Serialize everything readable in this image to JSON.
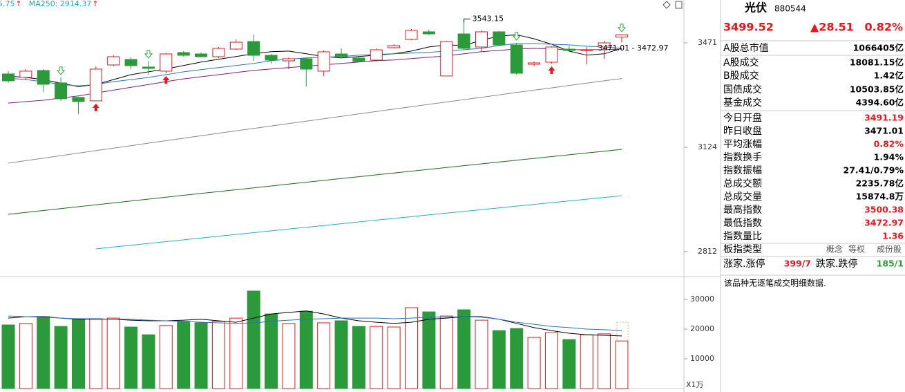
{
  "chart_data": [
    {
      "type": "candlestick",
      "log_scale": true,
      "legend": [
        {
          "label": "5.75",
          "arrow": "↑"
        },
        {
          "label": "MA250: 2914.37",
          "arrow": "↑"
        }
      ],
      "open": [
        3363.9,
        3352.2,
        3375.6,
        3333.6,
        3285.1,
        3273.7,
        3394.5,
        3413.4,
        3387.4,
        3373.3,
        3437.3,
        3432.5,
        3422.9,
        3449.3,
        3475.8,
        3427.7,
        3408.7,
        3415.8,
        3373.3,
        3432.5,
        3418.2,
        3411.0,
        3454.1,
        3483.1,
        3510.0,
        3356.9,
        3502.6,
        3456.5,
        3510.0,
        3463.7,
        3396.8,
        3403.9,
        3449.3,
        3444.5,
        3456.5,
        3491.19
      ],
      "high": [
        3373.3,
        3380.3,
        3380.3,
        3352.2,
        3287.4,
        3389.7,
        3427.7,
        3420.5,
        3408.7,
        3434.9,
        3442.1,
        3437.3,
        3456.5,
        3483.1,
        3500.2,
        3432.5,
        3420.5,
        3420.5,
        3444.5,
        3451.7,
        3422.9,
        3451.7,
        3466.2,
        3519.8,
        3517.3,
        3478.3,
        3543.15,
        3514.9,
        3512.4,
        3471.0,
        3406.3,
        3458.9,
        3461.3,
        3456.5,
        3478.3,
        3500.38
      ],
      "low": [
        3333.6,
        3342.9,
        3303.5,
        3273.7,
        3230.8,
        3273.7,
        3389.7,
        3380.3,
        3361.6,
        3366.2,
        3422.9,
        3420.5,
        3418.2,
        3446.9,
        3408.7,
        3399.2,
        3380.3,
        3322.0,
        3356.9,
        3418.2,
        3403.9,
        3406.3,
        3451.7,
        3480.7,
        3497.7,
        3356.9,
        3446.9,
        3442.1,
        3461.3,
        3361.6,
        3389.7,
        3399.2,
        3442.1,
        3396.8,
        3415.8,
        3472.97
      ],
      "close": [
        3340.5,
        3373.3,
        3328.9,
        3280.5,
        3271.4,
        3380.3,
        3422.9,
        3392.1,
        3382.7,
        3432.5,
        3427.7,
        3422.9,
        3451.7,
        3473.4,
        3427.7,
        3411.0,
        3415.8,
        3380.3,
        3439.7,
        3422.9,
        3406.3,
        3446.9,
        3461.3,
        3514.9,
        3502.6,
        3475.8,
        3451.7,
        3510.0,
        3463.7,
        3366.2,
        3401.5,
        3456.5,
        3444.5,
        3446.9,
        3471.01,
        3499.52
      ],
      "series": [
        {
          "color": "#000000",
          "values": [
            3356.8,
            3352.0,
            3344.9,
            3333.0,
            3321.1,
            3328.2,
            3344.9,
            3361.5,
            3371.0,
            3380.6,
            3392.5,
            3404.4,
            3413.9,
            3423.4,
            3432.9,
            3440.1,
            3442.4,
            3432.9,
            3423.4,
            3418.6,
            3423.4,
            3428.2,
            3432.9,
            3442.4,
            3456.7,
            3463.9,
            3461.5,
            3480.5,
            3494.8,
            3499.6,
            3485.3,
            3466.2,
            3442.4,
            3428.2,
            3432.9,
            3452.0
          ]
        },
        {
          "color": "#2f6fbf",
          "values": [
            3349.6,
            3344.9,
            3337.7,
            3328.2,
            3323.4,
            3328.2,
            3337.7,
            3344.9,
            3352.0,
            3361.5,
            3371.0,
            3378.2,
            3385.3,
            3392.5,
            3399.6,
            3409.1,
            3413.9,
            3418.6,
            3421.0,
            3423.4,
            3428.2,
            3430.5,
            3432.9,
            3435.3,
            3437.7,
            3442.4,
            3447.2,
            3452.0,
            3461.5,
            3468.6,
            3468.6,
            3466.2,
            3463.9,
            3459.1,
            3456.7,
            3452.0
          ]
        },
        {
          "color": "#7b1e7a",
          "values": [
            3266.3,
            3271.1,
            3275.8,
            3283.0,
            3290.1,
            3299.6,
            3309.2,
            3318.7,
            3328.2,
            3337.7,
            3347.2,
            3354.4,
            3361.5,
            3368.7,
            3375.8,
            3380.6,
            3385.3,
            3390.1,
            3394.8,
            3399.6,
            3404.4,
            3409.1,
            3411.5,
            3416.3,
            3421.0,
            3425.8,
            3432.9,
            3440.1,
            3444.8,
            3449.6,
            3452.0,
            3449.6,
            3447.2,
            3447.2,
            3447.2,
            3449.6
          ]
        },
        {
          "color": "#8a8a8a",
          "values": [
            3074.3,
            3082.1,
            3090.0,
            3097.8,
            3105.6,
            3113.5,
            3121.3,
            3129.1,
            3137.0,
            3144.8,
            3152.6,
            3160.4,
            3168.3,
            3176.1,
            3183.9,
            3191.8,
            3199.6,
            3207.4,
            3215.2,
            3223.1,
            3230.9,
            3238.7,
            3246.6,
            3254.4,
            3262.2,
            3270.1,
            3277.9,
            3285.7,
            3293.5,
            3301.4,
            3309.2,
            3317.0,
            3324.9,
            3332.7,
            3340.5,
            3348.4
          ]
        },
        {
          "color": "#1b6b1b",
          "values": [
            2919.6,
            2925.3,
            2930.9,
            2936.6,
            2942.2,
            2947.9,
            2953.5,
            2959.2,
            2964.8,
            2970.5,
            2976.1,
            2981.8,
            2987.4,
            2993.1,
            2998.7,
            3004.4,
            3010.0,
            3015.7,
            3021.3,
            3027.0,
            3032.6,
            3038.3,
            3043.9,
            3049.6,
            3055.2,
            3060.9,
            3066.5,
            3072.2,
            3077.8,
            3083.5,
            3089.1,
            3094.8,
            3100.4,
            3106.1,
            3111.7,
            3117.4
          ]
        },
        {
          "color": "#20b2c8",
          "values": [
            null,
            null,
            null,
            null,
            null,
            2819.6,
            2824.8,
            2830.0,
            2835.1,
            2840.3,
            2845.5,
            2850.7,
            2855.9,
            2861.0,
            2866.2,
            2871.4,
            2876.6,
            2881.8,
            2886.9,
            2892.1,
            2897.3,
            2902.5,
            2907.7,
            2912.8,
            2918.0,
            2923.2,
            2928.4,
            2933.6,
            2938.7,
            2943.9,
            2949.1,
            2954.3,
            2959.5,
            2964.6,
            2969.8,
            2975.0
          ]
        }
      ],
      "annotations": [
        {
          "text": "3543.15",
          "index": 26
        },
        {
          "text": "3471.01 - 3472.97",
          "index": 34
        }
      ],
      "ylim": [
        2745.8,
        3624.4
      ],
      "yticks": [
        2812,
        3124,
        3471
      ],
      "up_color": "#e8151b",
      "down_color": "#2a9a3a"
    },
    {
      "type": "bar",
      "unit_label": "X1万",
      "values": [
        21400,
        21900,
        24200,
        20900,
        23500,
        23500,
        23700,
        20700,
        18100,
        21200,
        22600,
        22100,
        22600,
        23700,
        32800,
        25100,
        21900,
        26000,
        22100,
        22800,
        20900,
        20900,
        20700,
        27200,
        25800,
        24400,
        26500,
        23000,
        19500,
        20200,
        17200,
        18800,
        16500,
        18100,
        18400,
        16000
      ],
      "series": [
        {
          "color": "#000000",
          "values": [
            23700,
            24200,
            24200,
            23700,
            23300,
            23300,
            23300,
            23000,
            22800,
            22800,
            23000,
            23300,
            22800,
            22300,
            23700,
            25100,
            25600,
            26100,
            25100,
            23700,
            22800,
            22300,
            21900,
            22300,
            23300,
            23700,
            24200,
            24200,
            23300,
            21900,
            20500,
            19500,
            18600,
            18100,
            17900,
            17700
          ]
        },
        {
          "color": "#2f6fbf",
          "values": [
            24400,
            24200,
            24000,
            23700,
            23500,
            23500,
            23300,
            23300,
            23000,
            22800,
            22600,
            22300,
            22100,
            21900,
            22100,
            22600,
            23000,
            23300,
            23500,
            23700,
            23700,
            23700,
            23500,
            23700,
            24000,
            24000,
            24200,
            24000,
            23300,
            22300,
            21600,
            20900,
            20500,
            20000,
            19800,
            19500
          ]
        }
      ],
      "ylim": [
        0,
        36750
      ],
      "yticks": [
        10000,
        20000,
        30000
      ]
    }
  ],
  "panel": {
    "name": "光伏",
    "code": "880544",
    "price": "3499.52",
    "change": "▲28.51",
    "pct": "0.82%",
    "rows": [
      {
        "label": "A股总市值",
        "value": "1066405亿"
      },
      {
        "label": "A股成交",
        "value": "18081.15亿"
      },
      {
        "label": "B股成交",
        "value": "1.42亿"
      },
      {
        "label": "国债成交",
        "value": "10503.85亿"
      },
      {
        "label": "基金成交",
        "value": "4394.60亿"
      },
      {
        "label": "今日开盘",
        "value": "3491.19",
        "color": "#e8151b"
      },
      {
        "label": "昨日收盘",
        "value": "3471.01"
      },
      {
        "label": "平均涨幅",
        "value": "0.82%",
        "color": "#e8151b"
      },
      {
        "label": "指数换手",
        "value": "1.94%"
      },
      {
        "label": "指数振幅",
        "value": "27.41/0.79%"
      },
      {
        "label": "总成交额",
        "value": "2235.78亿"
      },
      {
        "label": "总成交量",
        "value": "15874.8万"
      },
      {
        "label": "最高指数",
        "value": "3500.38",
        "color": "#e8151b"
      },
      {
        "label": "最低指数",
        "value": "3472.97",
        "color": "#e8151b"
      },
      {
        "label": "指数量比",
        "value": "1.36",
        "color": "#e8151b"
      }
    ],
    "type_row": {
      "label": "板指类型",
      "items": [
        "概念",
        "等权",
        "成份股"
      ]
    },
    "breadth": {
      "up_label": "涨家.涨停",
      "up": "399/7",
      "down_label": "跌家.跌停",
      "down": "185/1"
    },
    "note": "该品种无逐笔成交明细数据."
  }
}
